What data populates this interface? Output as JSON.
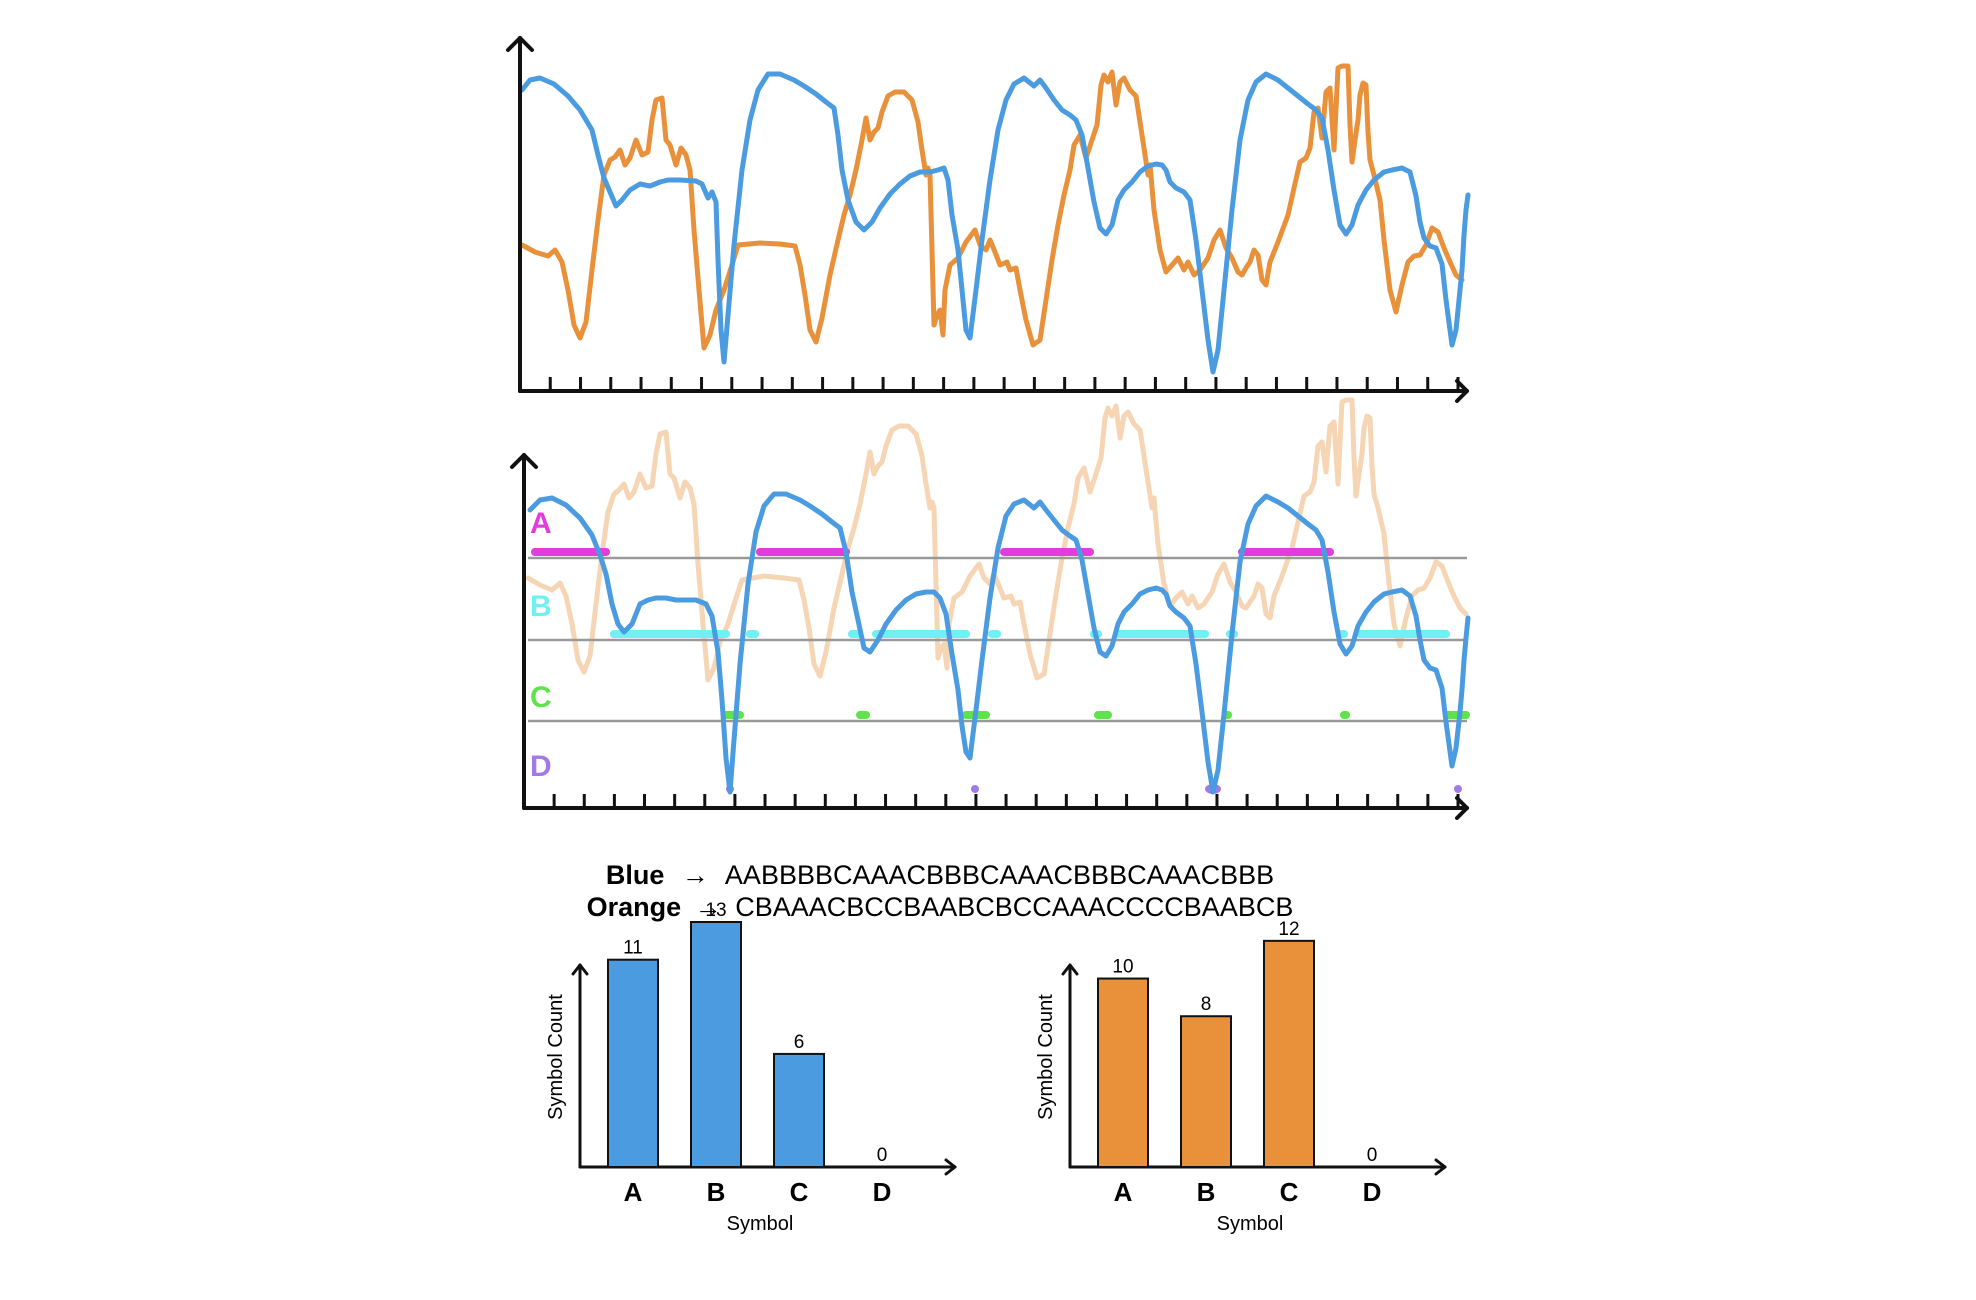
{
  "colors": {
    "blue": "#4a9be0",
    "orange": "#e8913a",
    "orange_faded": "#f6d5b4",
    "symbol_A": "#e23ddc",
    "symbol_B": "#6ff0f2",
    "symbol_C": "#5fe34b",
    "symbol_D": "#a27ae8",
    "threshold_line": "#999999",
    "axis": "#111111"
  },
  "signals_panel": {
    "series": [
      "blue",
      "orange"
    ],
    "x_ticks": 31
  },
  "symbolization_panel": {
    "symbols": [
      "A",
      "B",
      "C",
      "D"
    ],
    "thresholds": 3,
    "x_ticks": 31
  },
  "sequences": [
    {
      "name": "Blue",
      "arrow": "→",
      "symbols": "AABBBBCAAACBBBCAAACBBBCAAACBBB"
    },
    {
      "name": "Orange",
      "arrow": "→",
      "symbols": "CBAAACBCCBAABCBCCAAACCCCBAABCB"
    }
  ],
  "chart_data": [
    {
      "type": "bar",
      "categories": [
        "A",
        "B",
        "C",
        "D"
      ],
      "values": [
        11,
        13,
        6,
        0
      ],
      "color": "#4a9be0",
      "xlabel": "Symbol",
      "ylabel": "Symbol Count",
      "ylim": [
        0,
        16
      ]
    },
    {
      "type": "bar",
      "categories": [
        "A",
        "B",
        "C",
        "D"
      ],
      "values": [
        10,
        8,
        12,
        0
      ],
      "color": "#e8913a",
      "xlabel": "Symbol",
      "ylabel": "Symbol Count",
      "ylim": [
        0,
        16
      ]
    }
  ]
}
